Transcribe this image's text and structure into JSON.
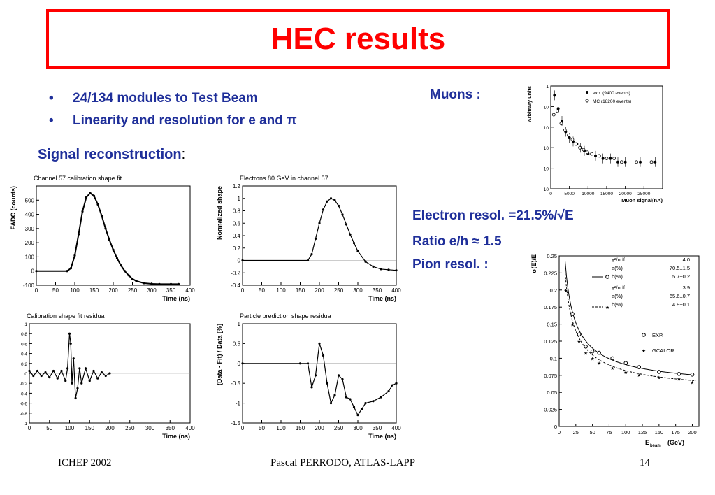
{
  "title": "HEC results",
  "bullets": [
    "24/134 modules to Test Beam",
    "Linearity and resolution for e and π"
  ],
  "bullet_glyph": "•",
  "signal_label": "Signal reconstruction",
  "signal_colon": ":",
  "muons_label": "Muons :",
  "electron_resol": "Electron resol. =21.5%/√E",
  "ratio": "Ratio e/h ≈ 1.5",
  "pion_resol": "Pion resol.  :",
  "footer": {
    "left": "ICHEP 2002",
    "center": "Pascal PERRODO, ATLAS-LAPP",
    "right": "14"
  },
  "colors": {
    "title": "#ff0000",
    "text": "#1f2f9a"
  },
  "chart_data": [
    {
      "type": "line",
      "title": "Channel 57 calibration shape fit",
      "xlabel": "Time  (ns)",
      "ylabel": "FADC  (counts)",
      "xlim": [
        0,
        400
      ],
      "ylim": [
        -100,
        600
      ],
      "xticks": [
        0,
        50,
        100,
        150,
        200,
        250,
        300,
        350,
        400
      ],
      "yticks": [
        -100,
        0,
        100,
        200,
        300,
        400,
        500
      ],
      "series": [
        {
          "x": [
            0,
            80,
            90,
            100,
            110,
            120,
            130,
            140,
            150,
            160,
            170,
            180,
            190,
            200,
            210,
            220,
            230,
            240,
            250,
            260,
            280,
            300,
            320,
            350,
            370
          ],
          "y": [
            0,
            0,
            20,
            110,
            260,
            420,
            520,
            550,
            530,
            470,
            390,
            300,
            220,
            150,
            90,
            40,
            0,
            -30,
            -55,
            -70,
            -85,
            -90,
            -92,
            -92,
            -92
          ]
        }
      ]
    },
    {
      "type": "line",
      "title": "Electrons 80 GeV in channel 57",
      "xlabel": "Time  (ns)",
      "ylabel": "Normalized shape",
      "xlim": [
        0,
        400
      ],
      "ylim": [
        -0.4,
        1.2
      ],
      "xticks": [
        0,
        50,
        100,
        150,
        200,
        250,
        300,
        350,
        400
      ],
      "yticks": [
        -0.4,
        -0.2,
        0,
        0.2,
        0.4,
        0.6,
        0.8,
        1,
        1.2
      ],
      "series": [
        {
          "x": [
            0,
            170,
            180,
            190,
            200,
            210,
            220,
            230,
            240,
            250,
            260,
            270,
            280,
            290,
            300,
            320,
            340,
            360,
            380,
            400
          ],
          "y": [
            0,
            0,
            0.1,
            0.35,
            0.6,
            0.82,
            0.95,
            1.0,
            0.97,
            0.88,
            0.74,
            0.58,
            0.42,
            0.28,
            0.15,
            -0.02,
            -0.1,
            -0.14,
            -0.15,
            -0.16
          ]
        }
      ]
    },
    {
      "type": "line",
      "title": "Calibration shape fit residua",
      "xlabel": "Time  (ns)",
      "ylabel": "",
      "xlim": [
        0,
        400
      ],
      "ylim": [
        -1,
        1
      ],
      "xticks": [
        0,
        50,
        100,
        150,
        200,
        250,
        300,
        350,
        400
      ],
      "yticks": [
        -1,
        -0.8,
        -0.6,
        -0.4,
        -0.2,
        0,
        0.2,
        0.4,
        0.6,
        0.8,
        1
      ],
      "series": [
        {
          "x": [
            0,
            10,
            20,
            30,
            40,
            50,
            60,
            70,
            80,
            90,
            95,
            100,
            103,
            106,
            110,
            115,
            120,
            125,
            130,
            140,
            150,
            160,
            170,
            180,
            190,
            200
          ],
          "y": [
            0.05,
            -0.05,
            0.05,
            -0.05,
            0.02,
            -0.08,
            0.05,
            -0.1,
            0.05,
            -0.15,
            0.1,
            0.8,
            0.6,
            -0.2,
            0.3,
            -0.5,
            -0.3,
            0.1,
            -0.2,
            0.1,
            -0.15,
            0.05,
            -0.1,
            0.02,
            -0.05,
            0
          ]
        }
      ]
    },
    {
      "type": "line",
      "title": "Particle prediction shape residua",
      "xlabel": "Time  (ns)",
      "ylabel": "(Data - Fit) / Data  [%]",
      "xlim": [
        0,
        400
      ],
      "ylim": [
        -1.5,
        1
      ],
      "xticks": [
        0,
        50,
        100,
        150,
        200,
        250,
        300,
        350,
        400
      ],
      "yticks": [
        -1.5,
        -1,
        -0.5,
        0,
        0.5,
        1
      ],
      "series": [
        {
          "x": [
            0,
            150,
            170,
            180,
            190,
            200,
            210,
            220,
            230,
            240,
            250,
            260,
            270,
            280,
            290,
            300,
            310,
            320,
            340,
            360,
            380,
            390,
            400
          ],
          "y": [
            0,
            0,
            0,
            -0.6,
            -0.3,
            0.5,
            0.2,
            -0.5,
            -1.0,
            -0.8,
            -0.3,
            -0.4,
            -0.85,
            -0.9,
            -1.1,
            -1.3,
            -1.15,
            -1.0,
            -0.95,
            -0.85,
            -0.7,
            -0.55,
            -0.5
          ]
        }
      ]
    },
    {
      "type": "scatter",
      "title": "",
      "xlabel": "Muon signal(nA)",
      "ylabel": "Arbitrary units",
      "xlim": [
        0,
        30000
      ],
      "log_y": true,
      "xticks": [
        0,
        5000,
        10000,
        15000,
        20000,
        25000
      ],
      "ytick_labels": [
        "1",
        "10",
        "10",
        "10",
        "10",
        "10"
      ],
      "legend": [
        "exp. (9400 events)",
        "MC (18200 events)"
      ],
      "series": [
        {
          "name": "exp. (9400 events)",
          "x": [
            1000,
            2000,
            3000,
            4000,
            5000,
            6000,
            7000,
            8000,
            9000,
            10000,
            12000,
            14000,
            16000,
            18000,
            20000,
            24000,
            28000
          ],
          "y": [
            0.35,
            0.08,
            0.02,
            0.006,
            0.003,
            0.002,
            0.0015,
            0.001,
            0.0007,
            0.0005,
            0.0004,
            0.0003,
            0.0003,
            0.0002,
            0.0002,
            0.0002,
            0.0002
          ]
        },
        {
          "name": "MC (18200 events)",
          "x": [
            800,
            1800,
            2800,
            3800,
            4800,
            5800,
            6800,
            7800,
            8800,
            9800,
            11000,
            13000,
            15000,
            17000,
            19000,
            23000,
            27000
          ],
          "y": [
            0.04,
            0.06,
            0.015,
            0.007,
            0.004,
            0.0025,
            0.0015,
            0.001,
            0.0008,
            0.0006,
            0.0005,
            0.0004,
            0.0003,
            0.0003,
            0.0002,
            0.0002,
            0.0002
          ]
        }
      ]
    },
    {
      "type": "scatter",
      "title": "",
      "xlabel": "E",
      "xlabel_sub": "beam",
      "xlabel_unit": "(GeV)",
      "ylabel": "σ(E)/E",
      "xlim": [
        0,
        210
      ],
      "ylim": [
        0,
        0.25
      ],
      "xticks": [
        0,
        25,
        50,
        75,
        100,
        125,
        150,
        175,
        200
      ],
      "yticks": [
        0,
        0.025,
        0.05,
        0.075,
        0.1,
        0.125,
        0.15,
        0.175,
        0.2,
        0.225,
        0.25
      ],
      "fit_table": [
        [
          "χ²/ndf",
          "4.0"
        ],
        [
          "a(%)",
          "70.5±1.5"
        ],
        [
          "b(%)",
          "5.7±0.2"
        ],
        [
          "χ²/ndf",
          "3.9"
        ],
        [
          "a(%)",
          "65.6±0.7"
        ],
        [
          "b(%)",
          "4.9±0.1"
        ]
      ],
      "legend": [
        "EXP.",
        "GCALOR"
      ],
      "series": [
        {
          "name": "EXP.",
          "x": [
            20,
            30,
            40,
            50,
            60,
            80,
            100,
            120,
            150,
            180,
            200
          ],
          "y": [
            0.165,
            0.135,
            0.117,
            0.11,
            0.108,
            0.1,
            0.093,
            0.087,
            0.08,
            0.077,
            0.076
          ],
          "a": 70.5,
          "b": 5.7
        },
        {
          "name": "GCALOR",
          "x": [
            10,
            20,
            30,
            40,
            50,
            60,
            80,
            100,
            120,
            150,
            180,
            200
          ],
          "y": [
            0.2,
            0.15,
            0.125,
            0.108,
            0.1,
            0.093,
            0.086,
            0.08,
            0.076,
            0.072,
            0.07,
            0.065
          ],
          "a": 65.6,
          "b": 4.9
        }
      ]
    }
  ]
}
